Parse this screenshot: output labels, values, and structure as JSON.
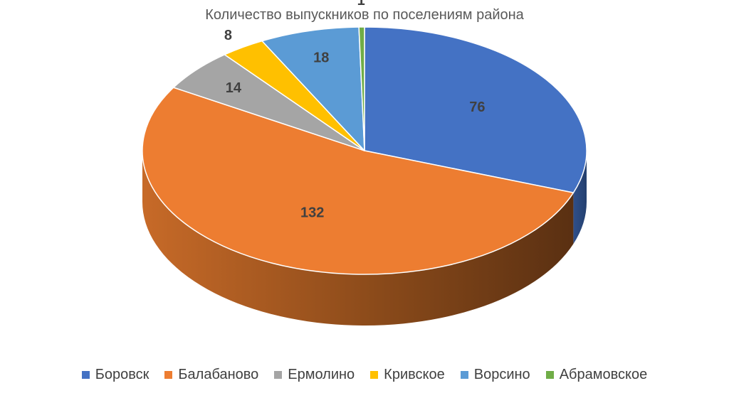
{
  "chart_data": {
    "type": "pie",
    "title": "Количество выпускников по поселениям района",
    "categories": [
      "Боровск",
      "Балабаново",
      "Ермолино",
      "Кривское",
      "Ворсино",
      "Абрамовское"
    ],
    "values": [
      76,
      132,
      14,
      8,
      18,
      1
    ],
    "colors": [
      "#4472C4",
      "#ED7D31",
      "#A5A5A5",
      "#FFC000",
      "#5B9BD5",
      "#70AD47"
    ],
    "legend_position": "bottom",
    "style": "3d-pie"
  }
}
